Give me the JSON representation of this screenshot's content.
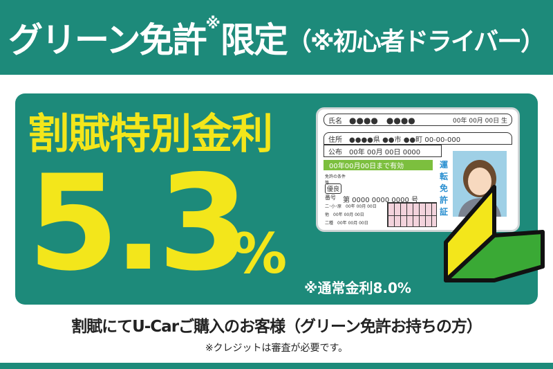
{
  "header": {
    "title_part1": "グリーン免許",
    "title_note": "※",
    "title_part2": "限定",
    "title_part3": "（※初心者ドライバー）"
  },
  "offer": {
    "label": "割賦特別金利",
    "rate": "5.3",
    "unit": "%",
    "normal_rate": "※通常金利8.0%"
  },
  "license_card": {
    "name_label": "氏名",
    "name_value": "●●●●　●●●●",
    "birth": "00年 00月 00日 生",
    "address_label": "住所",
    "address_value": "●●●●県 ●●市 ●●町 00-00-000",
    "issued_label": "公布",
    "issued_value": "00年 00月 00日 0000",
    "valid_until": "00年00月00日まで有効",
    "conditions_label": "免許の条件等",
    "badge": "優良",
    "number_label": "番号",
    "number_value": "第 0000 0000 0000 号",
    "rows": [
      {
        "label": "二･小･原",
        "value": "00年 00月 00日"
      },
      {
        "label": "他",
        "value": "00年 00月 00日"
      },
      {
        "label": "二種",
        "value": "00年 00月 00日"
      }
    ],
    "vertical_title": "運転免許証"
  },
  "customer_text": "割賦にてU-Carご購入のお客様（グリーン免許お持ちの方）",
  "footnote": "※クレジットは審査が必要です。",
  "colors": {
    "teal": "#1d8a7a",
    "yellow": "#f3e61b",
    "green": "#3aa935"
  }
}
